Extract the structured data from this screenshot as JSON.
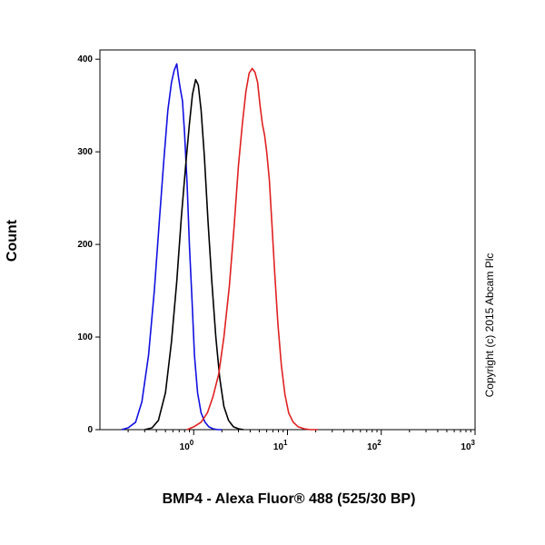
{
  "chart_data": {
    "type": "line",
    "xlabel": "BMP4 - Alexa Fluor® 488 (525/30 BP)",
    "ylabel": "Count",
    "x_scale": "log",
    "xlim": [
      0.1,
      1000
    ],
    "ylim": [
      0,
      410
    ],
    "x_ticks": [
      {
        "base": "10",
        "exp": "0",
        "value": 1
      },
      {
        "base": "10",
        "exp": "1",
        "value": 10
      },
      {
        "base": "10",
        "exp": "2",
        "value": 100
      },
      {
        "base": "10",
        "exp": "3",
        "value": 1000
      }
    ],
    "y_ticks": [
      0,
      100,
      200,
      300,
      400
    ],
    "grid": false,
    "legend": "none",
    "annotation": "Copyright (c) 2015 Abcam Plc",
    "series": [
      {
        "color": "#1010e0",
        "x": [
          0.17,
          0.2,
          0.24,
          0.28,
          0.33,
          0.38,
          0.43,
          0.48,
          0.53,
          0.58,
          0.62,
          0.66,
          0.69,
          0.72,
          0.76,
          0.8,
          0.85,
          0.9,
          0.96,
          1.02,
          1.1,
          1.2,
          1.32,
          1.45,
          1.6,
          1.8,
          2.0
        ],
        "y": [
          0,
          2,
          8,
          30,
          80,
          150,
          225,
          290,
          345,
          375,
          388,
          395,
          380,
          368,
          355,
          320,
          265,
          200,
          140,
          80,
          40,
          18,
          8,
          3,
          1,
          0,
          0
        ]
      },
      {
        "color": "#000000",
        "x": [
          0.3,
          0.36,
          0.42,
          0.5,
          0.58,
          0.66,
          0.74,
          0.82,
          0.9,
          0.97,
          1.05,
          1.12,
          1.2,
          1.3,
          1.42,
          1.56,
          1.72,
          1.9,
          2.1,
          2.35,
          2.65,
          3.0,
          3.4
        ],
        "y": [
          0,
          2,
          10,
          40,
          95,
          160,
          230,
          285,
          330,
          362,
          378,
          372,
          345,
          295,
          225,
          160,
          100,
          55,
          25,
          10,
          3,
          1,
          0
        ]
      },
      {
        "color": "#e02020",
        "x": [
          0.85,
          1.0,
          1.2,
          1.4,
          1.6,
          1.85,
          2.1,
          2.4,
          2.7,
          3.0,
          3.3,
          3.6,
          3.9,
          4.2,
          4.5,
          4.8,
          5.1,
          5.4,
          5.7,
          6.0,
          6.4,
          6.8,
          7.3,
          7.9,
          8.6,
          9.4,
          10.3,
          11.5,
          13.0,
          15.0,
          17.5,
          21.0
        ],
        "y": [
          0,
          3,
          8,
          18,
          35,
          60,
          100,
          155,
          220,
          285,
          330,
          365,
          385,
          390,
          386,
          375,
          350,
          330,
          318,
          300,
          270,
          225,
          170,
          115,
          70,
          38,
          18,
          8,
          3,
          1,
          0,
          0
        ]
      }
    ]
  }
}
